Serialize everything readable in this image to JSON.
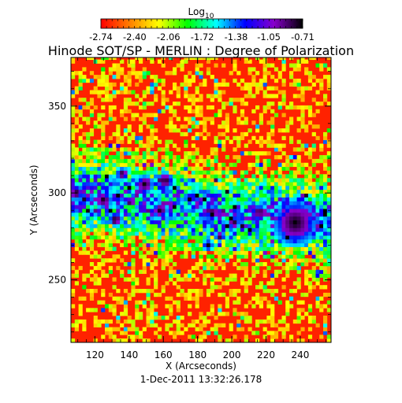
{
  "chart_data": {
    "type": "heatmap",
    "title": "Hinode SOT/SP - MERLIN : Degree of Polarization",
    "xlabel": "X (Arcseconds)",
    "ylabel": "Y (Arcseconds)",
    "date_label": "1-Dec-2011 13:32:26.178",
    "xlim": [
      106,
      258
    ],
    "ylim": [
      214,
      378
    ],
    "x_ticks": [
      120,
      140,
      160,
      180,
      200,
      220,
      240
    ],
    "y_ticks": [
      250,
      300,
      350
    ],
    "colorbar": {
      "label": "Log",
      "label_subscript": "10",
      "scale": "log10",
      "range": [
        -2.74,
        -0.71
      ],
      "tick_labels": [
        "-2.74",
        "-2.40",
        "-2.06",
        "-1.72",
        "-1.38",
        "-1.05",
        "-0.71"
      ],
      "colormap": [
        "#ff0000",
        "#ff7f00",
        "#ffff00",
        "#00ff00",
        "#00ffff",
        "#0000ff",
        "#8800cc",
        "#000000"
      ]
    },
    "features": [
      {
        "type": "sunspot",
        "x": 236,
        "y": 282,
        "r": 8
      },
      {
        "type": "pore",
        "x": 148,
        "y": 304,
        "r": 3.2
      },
      {
        "type": "pore",
        "x": 160,
        "y": 306,
        "r": 3
      },
      {
        "type": "pore",
        "x": 124,
        "y": 295,
        "r": 3
      },
      {
        "type": "pore",
        "x": 131,
        "y": 284,
        "r": 2.5
      },
      {
        "type": "pore",
        "x": 157,
        "y": 289,
        "r": 2.8
      },
      {
        "type": "pore",
        "x": 215,
        "y": 288,
        "r": 2.6
      },
      {
        "type": "pore",
        "x": 200,
        "y": 282,
        "r": 2.2
      },
      {
        "type": "pore",
        "x": 108,
        "y": 299,
        "r": 2.5
      },
      {
        "type": "pore",
        "x": 188,
        "y": 288,
        "r": 2.2
      },
      {
        "type": "pore",
        "x": 135,
        "y": 310,
        "r": 2.2
      },
      {
        "type": "pore",
        "x": 185,
        "y": 269,
        "r": 1.8
      },
      {
        "type": "pore",
        "x": 192,
        "y": 274,
        "r": 1.8
      }
    ]
  }
}
